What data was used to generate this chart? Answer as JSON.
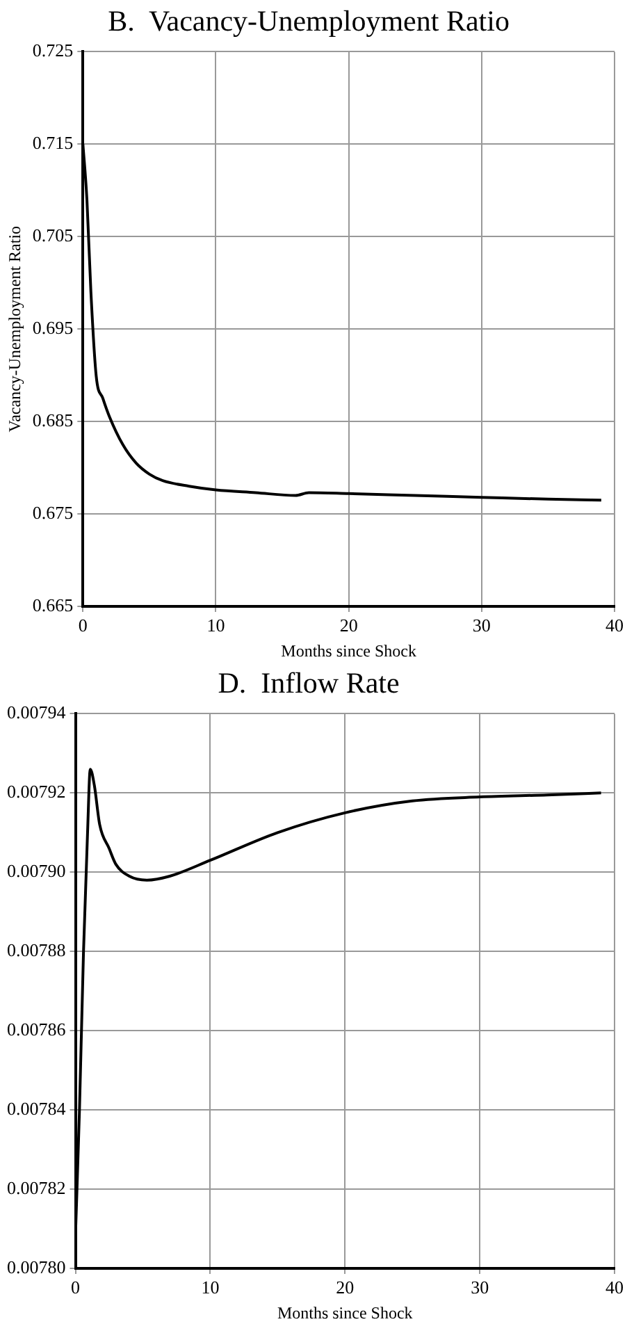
{
  "chart_data": [
    {
      "type": "line",
      "title": "B.  Vacancy-Unemployment Ratio",
      "xlabel": "Months since Shock",
      "ylabel": "Vacancy-Unemployment Ratio",
      "xlim": [
        0,
        40
      ],
      "xticks": [
        0,
        10,
        20,
        30,
        40
      ],
      "ylim": [
        0.665,
        0.725
      ],
      "yticks": [
        0.665,
        0.675,
        0.685,
        0.695,
        0.705,
        0.715,
        0.725
      ],
      "grid": true,
      "legend": false,
      "marker": "none",
      "line_style": "solid",
      "series": [
        {
          "color": "#000000",
          "x": [
            0,
            0.3,
            0.6,
            1,
            1.5,
            2,
            3,
            4,
            5,
            6,
            8,
            10,
            13,
            16,
            17,
            20,
            25,
            30,
            35,
            39
          ],
          "values": [
            0.715,
            0.709,
            0.699,
            0.6899,
            0.6875,
            0.6855,
            0.6825,
            0.6805,
            0.6793,
            0.6786,
            0.678,
            0.6776,
            0.6773,
            0.677,
            0.6773,
            0.6772,
            0.677,
            0.6768,
            0.6766,
            0.6765
          ]
        }
      ]
    },
    {
      "type": "line",
      "title": "D.  Inflow Rate",
      "xlabel": "Months since Shock",
      "xlim": [
        0,
        40
      ],
      "xticks": [
        0,
        10,
        20,
        30,
        40
      ],
      "ylim": [
        0.0078,
        0.00794
      ],
      "yticks": [
        {
          "value": 0.0078,
          "label": "0.00780"
        },
        0.00782,
        0.00784,
        0.00786,
        0.00788,
        {
          "value": 0.0079,
          "label": "0.00790"
        },
        0.00792,
        0.00794
      ],
      "grid": true,
      "legend": false,
      "marker": "none",
      "line_style": "solid",
      "series": [
        {
          "color": "#000000",
          "x": [
            0,
            0.3,
            0.6,
            0.9,
            1.1,
            1.4,
            1.8,
            2.5,
            3,
            4,
            5.3,
            7,
            10,
            15,
            20,
            25,
            30,
            35,
            39
          ],
          "values": [
            0.007808,
            0.00784,
            0.00788,
            0.00791,
            0.007926,
            0.007922,
            0.007912,
            0.007906,
            0.007902,
            0.007899,
            0.007898,
            0.007899,
            0.007903,
            0.00791,
            0.007915,
            0.007918,
            0.007919,
            0.0079195,
            0.00792
          ]
        }
      ]
    }
  ]
}
